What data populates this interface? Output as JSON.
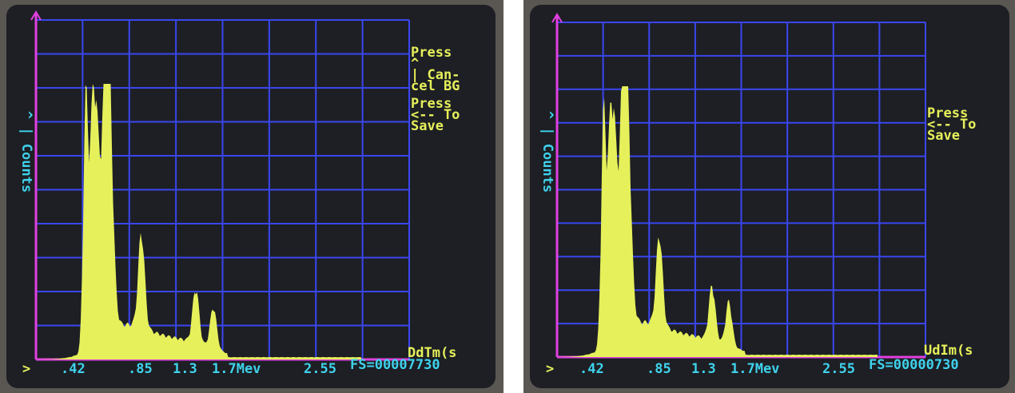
{
  "panels": [
    {
      "y_label": "^ | Counts",
      "side_text": [
        "Press",
        "^",
        "| Can-",
        "cel BG",
        "Press",
        "<-- To",
        "Save"
      ],
      "corner_label": "DdTm(s",
      "prompt": ">",
      "x_labels": [
        ".42",
        ".85",
        "1.3",
        "1.7Mev",
        "2.55"
      ],
      "full_scale": "FS=00007730"
    },
    {
      "y_label": "^ | Counts",
      "side_text": [
        "Press",
        "<-- To",
        "Save"
      ],
      "corner_label": "UdIm(s",
      "prompt": ">",
      "x_labels": [
        ".42",
        ".85",
        "1.3",
        "1.7Mev",
        "2.55"
      ],
      "full_scale": "FS=00000730"
    }
  ]
}
